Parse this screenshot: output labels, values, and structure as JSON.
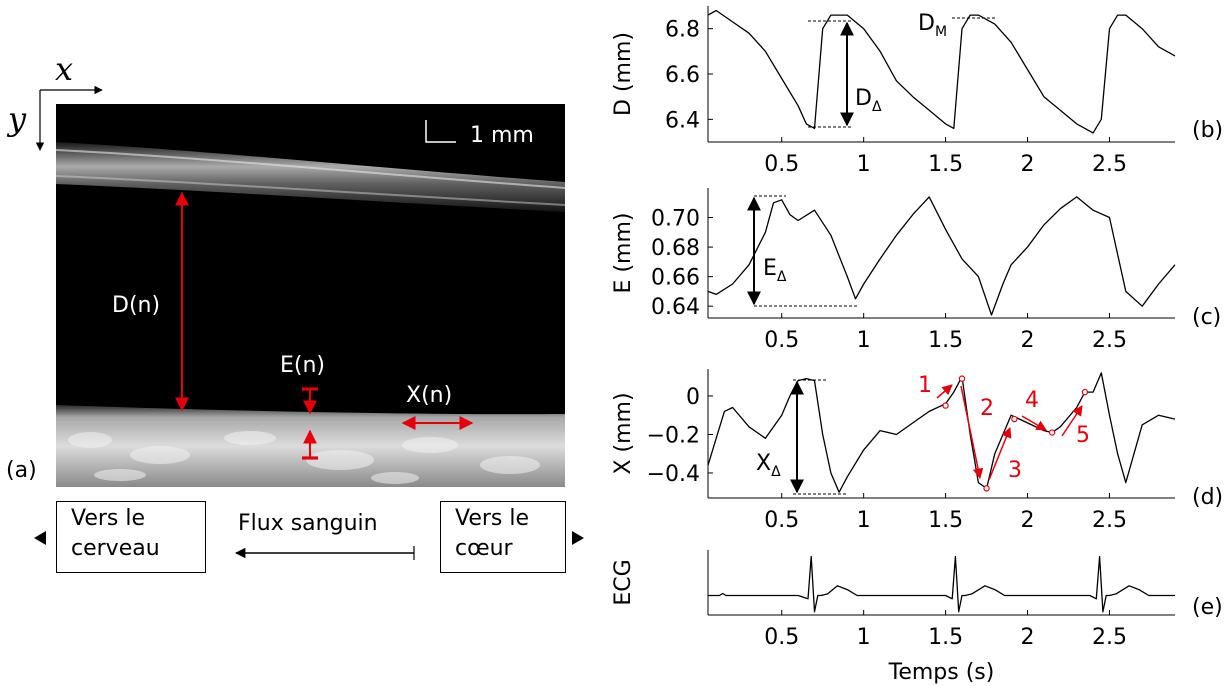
{
  "panel_labels": {
    "a": "(a)",
    "b": "(b)",
    "c": "(c)",
    "d": "(d)",
    "e": "(e)"
  },
  "ultrasound": {
    "axis_x": "x",
    "axis_y": "y",
    "scale_bar": "1 mm",
    "label_D": "D(n)",
    "label_E": "E(n)",
    "label_X": "X(n)"
  },
  "flow": {
    "left_box_line1": "Vers le",
    "left_box_line2": "cerveau",
    "right_box_line1": "Vers le",
    "right_box_line2": "cœur",
    "flow_label": "Flux sanguin"
  },
  "annotations": {
    "D_delta": "D",
    "D_delta_sub": "Δ",
    "D_max": "D",
    "D_max_sub": "M",
    "E_delta": "E",
    "E_delta_sub": "Δ",
    "X_delta": "X",
    "X_delta_sub": "Δ",
    "steps": [
      "1",
      "2",
      "3",
      "4",
      "5"
    ]
  },
  "colors": {
    "annotation_red": "#e8000b",
    "trace": "#000000"
  },
  "chart_data": [
    {
      "type": "line",
      "ylabel": "D (mm)",
      "xlim": [
        0.05,
        2.9
      ],
      "ylim": [
        6.3,
        6.9
      ],
      "yticks": [
        6.4,
        6.6,
        6.8
      ],
      "ytick_labels": [
        "6.4",
        "6.6",
        "6.8"
      ],
      "xticks": [
        0.5,
        1,
        1.5,
        2,
        2.5
      ],
      "xtick_labels": [
        "0.5",
        "1",
        "1.5",
        "2",
        "2.5"
      ],
      "x": [
        0.05,
        0.1,
        0.2,
        0.3,
        0.4,
        0.5,
        0.6,
        0.65,
        0.7,
        0.75,
        0.8,
        0.9,
        1.0,
        1.1,
        1.2,
        1.3,
        1.4,
        1.5,
        1.55,
        1.6,
        1.65,
        1.7,
        1.8,
        1.9,
        2.0,
        2.1,
        2.2,
        2.3,
        2.4,
        2.45,
        2.5,
        2.55,
        2.6,
        2.7,
        2.8,
        2.9
      ],
      "series": [
        {
          "values": [
            6.86,
            6.88,
            6.83,
            6.78,
            6.7,
            6.58,
            6.46,
            6.38,
            6.36,
            6.8,
            6.86,
            6.86,
            6.8,
            6.7,
            6.57,
            6.5,
            6.44,
            6.38,
            6.36,
            6.8,
            6.86,
            6.86,
            6.82,
            6.74,
            6.62,
            6.5,
            6.44,
            6.38,
            6.34,
            6.4,
            6.8,
            6.86,
            6.86,
            6.8,
            6.72,
            6.68
          ]
        }
      ]
    },
    {
      "type": "line",
      "ylabel": "E (mm)",
      "xlim": [
        0.05,
        2.9
      ],
      "ylim": [
        0.632,
        0.72
      ],
      "yticks": [
        0.64,
        0.66,
        0.68,
        0.7
      ],
      "ytick_labels": [
        "0.64",
        "0.66",
        "0.68",
        "0.70"
      ],
      "xticks": [
        0.5,
        1,
        1.5,
        2,
        2.5
      ],
      "xtick_labels": [
        "0.5",
        "1",
        "1.5",
        "2",
        "2.5"
      ],
      "x": [
        0.05,
        0.1,
        0.2,
        0.3,
        0.4,
        0.45,
        0.5,
        0.55,
        0.6,
        0.7,
        0.8,
        0.9,
        0.95,
        1.0,
        1.1,
        1.2,
        1.3,
        1.4,
        1.5,
        1.6,
        1.7,
        1.78,
        1.85,
        1.9,
        2.0,
        2.1,
        2.2,
        2.3,
        2.4,
        2.5,
        2.6,
        2.7,
        2.8,
        2.9
      ],
      "series": [
        {
          "values": [
            0.65,
            0.648,
            0.655,
            0.668,
            0.69,
            0.71,
            0.712,
            0.702,
            0.698,
            0.705,
            0.688,
            0.66,
            0.645,
            0.655,
            0.672,
            0.688,
            0.702,
            0.714,
            0.692,
            0.672,
            0.66,
            0.634,
            0.655,
            0.668,
            0.68,
            0.695,
            0.706,
            0.714,
            0.705,
            0.7,
            0.65,
            0.64,
            0.655,
            0.668
          ]
        }
      ]
    },
    {
      "type": "line",
      "ylabel": "X (mm)",
      "xlim": [
        0.05,
        2.9
      ],
      "ylim": [
        -0.53,
        0.14
      ],
      "yticks": [
        -0.4,
        -0.2,
        0
      ],
      "ytick_labels": [
        "−0.4",
        "−0.2",
        "0"
      ],
      "xticks": [
        0.5,
        1,
        1.5,
        2,
        2.5
      ],
      "xtick_labels": [
        "0.5",
        "1",
        "1.5",
        "2",
        "2.5"
      ],
      "x": [
        0.05,
        0.1,
        0.15,
        0.2,
        0.3,
        0.4,
        0.5,
        0.55,
        0.6,
        0.65,
        0.7,
        0.75,
        0.8,
        0.85,
        0.9,
        1.0,
        1.1,
        1.2,
        1.3,
        1.4,
        1.5,
        1.55,
        1.6,
        1.65,
        1.7,
        1.75,
        1.8,
        1.9,
        2.0,
        2.1,
        2.15,
        2.2,
        2.3,
        2.35,
        2.4,
        2.45,
        2.5,
        2.55,
        2.6,
        2.7,
        2.8,
        2.9
      ],
      "series": [
        {
          "values": [
            -0.36,
            -0.22,
            -0.08,
            -0.06,
            -0.16,
            -0.22,
            -0.1,
            0.0,
            0.08,
            0.09,
            0.08,
            -0.2,
            -0.4,
            -0.5,
            -0.42,
            -0.28,
            -0.18,
            -0.2,
            -0.14,
            -0.08,
            -0.04,
            0.02,
            0.1,
            -0.2,
            -0.45,
            -0.48,
            -0.3,
            -0.1,
            -0.14,
            -0.18,
            -0.19,
            -0.16,
            -0.06,
            0.02,
            0.02,
            0.12,
            -0.1,
            -0.3,
            -0.45,
            -0.15,
            -0.1,
            -0.12
          ]
        }
      ],
      "marked_points": [
        [
          1.5,
          -0.05
        ],
        [
          1.6,
          0.09
        ],
        [
          1.75,
          -0.48
        ],
        [
          1.92,
          -0.12
        ],
        [
          2.15,
          -0.19
        ],
        [
          2.35,
          0.02
        ]
      ]
    },
    {
      "type": "line",
      "ylabel": "ECG",
      "xlabel": "Temps (s)",
      "xlim": [
        0.05,
        2.9
      ],
      "ylim": [
        -0.6,
        1.4
      ],
      "yticks": [],
      "xticks": [
        0.5,
        1,
        1.5,
        2,
        2.5
      ],
      "xtick_labels": [
        "0.5",
        "1",
        "1.5",
        "2",
        "2.5"
      ],
      "x": [
        0.05,
        0.12,
        0.14,
        0.16,
        0.3,
        0.6,
        0.66,
        0.68,
        0.7,
        0.72,
        0.74,
        0.78,
        0.84,
        0.9,
        0.96,
        1.2,
        1.5,
        1.54,
        1.56,
        1.58,
        1.6,
        1.62,
        1.66,
        1.74,
        1.8,
        1.86,
        2.1,
        2.38,
        2.42,
        2.44,
        2.46,
        2.48,
        2.5,
        2.54,
        2.62,
        2.68,
        2.74,
        2.9
      ],
      "series": [
        {
          "values": [
            0,
            0,
            0.06,
            0,
            0,
            0,
            -0.1,
            1.2,
            -0.5,
            0,
            0,
            0.05,
            0.3,
            0.18,
            0,
            0,
            0,
            -0.1,
            1.2,
            -0.5,
            0,
            0,
            0.05,
            0.3,
            0.18,
            0,
            0,
            0,
            -0.1,
            1.2,
            -0.5,
            0,
            0,
            0.05,
            0.3,
            0.18,
            0,
            0
          ]
        }
      ]
    }
  ]
}
